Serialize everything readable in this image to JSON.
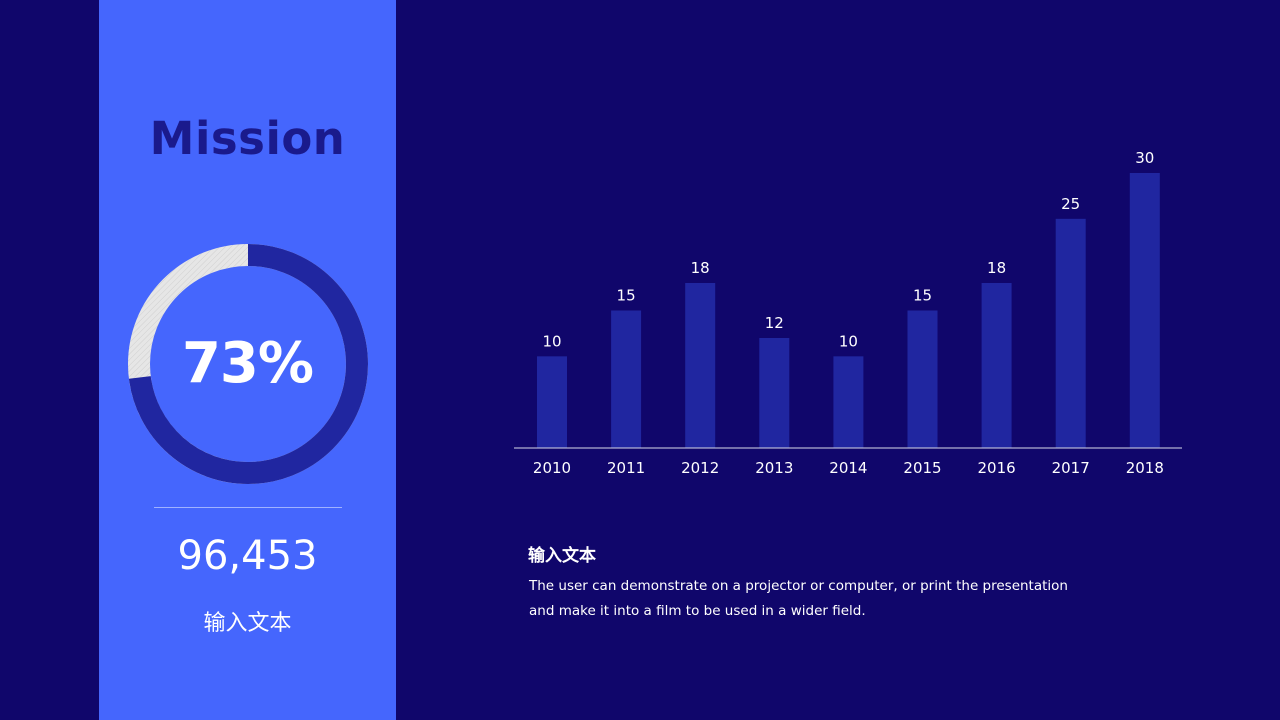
{
  "side_panel": {
    "title": "Mission",
    "donut": {
      "percent_label": "73%",
      "fraction": 0.73,
      "fill_color": "#2026a0",
      "rest_color": "#e6e6e6"
    },
    "big_number": "96,453",
    "caption": "输入文本"
  },
  "description": {
    "title": "输入文本",
    "text": "The user can demonstrate on a projector or computer, or print the presentation and make it into a film to be used in a wider field."
  },
  "chart_data": {
    "type": "bar",
    "categories": [
      "2010",
      "2011",
      "2012",
      "2013",
      "2014",
      "2015",
      "2016",
      "2017",
      "2018"
    ],
    "values": [
      10,
      15,
      18,
      12,
      10,
      15,
      18,
      25,
      30
    ],
    "data_labels": [
      "10",
      "15",
      "18",
      "12",
      "10",
      "15",
      "18",
      "25",
      "30"
    ],
    "bar_color": "#2026a0",
    "ylim": [
      0,
      30
    ],
    "grid": false
  }
}
